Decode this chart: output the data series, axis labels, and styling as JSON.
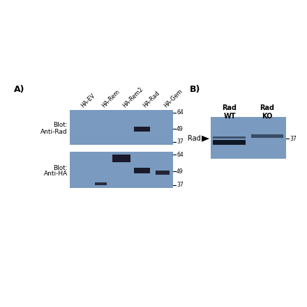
{
  "bg_color": "#ffffff",
  "blot_bg_color": "#7a9abf",
  "dark_band_color": "#1a1a2a",
  "panel_A_label": "A)",
  "panel_B_label": "B)",
  "blot1_label1": "Blot:",
  "blot1_label2": "Anti-Rad",
  "blot2_label1": "Blot:",
  "blot2_label2": "Anti-HA",
  "lane_labels": [
    "HA-EV",
    "HA-Rem",
    "HA-Rem2",
    "HA-Rad",
    "HA-Gem"
  ],
  "mw_markers": [
    64,
    49,
    37
  ],
  "rad_label": "Rad",
  "rad_wt_label": "Rad\nWT",
  "rad_ko_label": "Rad\nKO",
  "mw_marker_B": 37
}
